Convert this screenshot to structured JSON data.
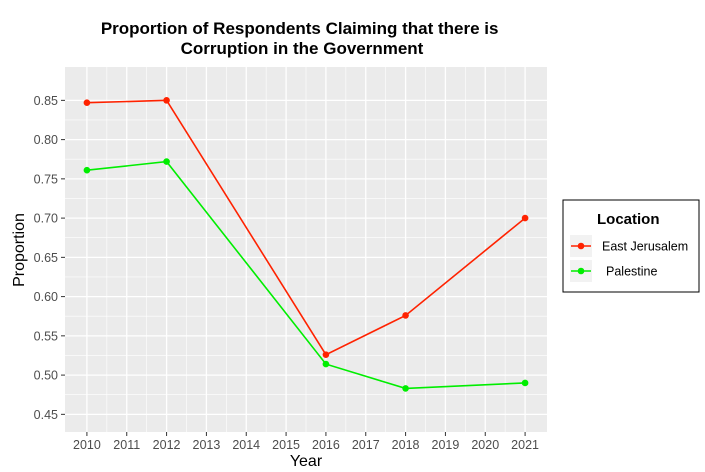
{
  "chart_data": {
    "type": "line",
    "title": "Proportion of Respondents Claiming that there is Corruption in the Government",
    "title_lines": [
      "Proportion of Respondents Claiming that there is",
      "Corruption in the Government"
    ],
    "xlabel": "Year",
    "ylabel": "Proportion",
    "x": [
      2010,
      2012,
      2016,
      2018,
      2021
    ],
    "x_ticks": [
      "2010",
      "2011",
      "2012",
      "2013",
      "2014",
      "2015",
      "2016",
      "2017",
      "2018",
      "2019",
      "2020",
      "2021"
    ],
    "y_ticks": [
      "0.45",
      "0.50",
      "0.55",
      "0.60",
      "0.65",
      "0.70",
      "0.75",
      "0.80",
      "0.85"
    ],
    "xlim": [
      2009.45,
      2021.55
    ],
    "ylim": [
      0.4275,
      0.8925
    ],
    "grid": true,
    "legend": {
      "title": "Location",
      "placement": "right"
    },
    "series": [
      {
        "name": "East Jerusalem",
        "color": "#ff2200",
        "values": [
          0.847,
          0.85,
          0.526,
          0.576,
          0.7
        ]
      },
      {
        "name": "Palestine",
        "color": "#00ee00",
        "values": [
          0.761,
          0.772,
          0.514,
          0.483,
          0.49
        ]
      }
    ]
  },
  "colors": {
    "panel_background": "#ebebeb",
    "grid": "#ffffff",
    "tick_text": "#4d4d4d"
  }
}
